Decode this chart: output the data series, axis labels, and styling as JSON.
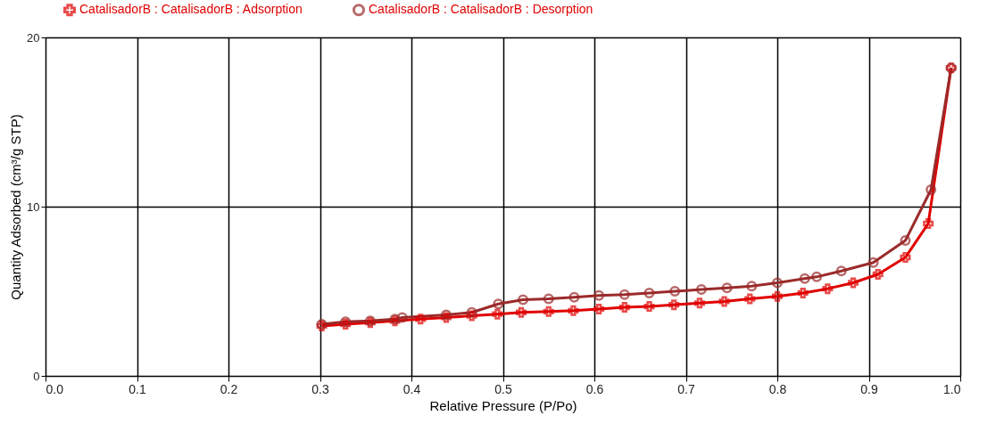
{
  "chart_data": {
    "type": "line",
    "xlabel": "Relative Pressure (P/Po)",
    "ylabel": "Quantity Adsorbed (cm³/g STP)",
    "xlim": [
      0,
      1
    ],
    "ylim": [
      0,
      20
    ],
    "xticks": [
      {
        "value": 0,
        "label": "0.0"
      },
      0.1,
      0.2,
      0.3,
      0.4,
      0.5,
      0.6,
      0.7,
      0.8,
      0.9,
      {
        "value": 1,
        "label": "1.0"
      }
    ],
    "yticks": [
      0,
      10,
      20
    ],
    "grid": true,
    "legend": "top left",
    "line_style": "solid",
    "series": [
      {
        "name": "CatalisadorB : CatalisadorB : Adsorption",
        "color": "#e00000",
        "marker": "cross",
        "x": [
          0.302,
          0.328,
          0.355,
          0.382,
          0.41,
          0.438,
          0.466,
          0.494,
          0.52,
          0.55,
          0.577,
          0.605,
          0.633,
          0.66,
          0.687,
          0.715,
          0.742,
          0.77,
          0.8,
          0.828,
          0.855,
          0.883,
          0.91,
          0.94,
          0.965,
          0.99
        ],
        "values": [
          2.95,
          3.05,
          3.15,
          3.25,
          3.35,
          3.45,
          3.55,
          3.65,
          3.75,
          3.8,
          3.85,
          3.95,
          4.05,
          4.1,
          4.2,
          4.3,
          4.4,
          4.55,
          4.7,
          4.9,
          5.15,
          5.5,
          6.0,
          7.0,
          9.0,
          18.2
        ]
      },
      {
        "name": "CatalisadorB : CatalisadorB : Desorption",
        "color": "#9b2a2a",
        "marker": "circle",
        "x": [
          0.99,
          0.968,
          0.94,
          0.905,
          0.87,
          0.843,
          0.83,
          0.8,
          0.772,
          0.745,
          0.717,
          0.688,
          0.66,
          0.633,
          0.605,
          0.578,
          0.55,
          0.522,
          0.495,
          0.466,
          0.438,
          0.39,
          0.382,
          0.355,
          0.328,
          0.302
        ],
        "values": [
          18.2,
          11.0,
          8.0,
          6.7,
          6.2,
          5.85,
          5.75,
          5.5,
          5.3,
          5.2,
          5.1,
          5.0,
          4.9,
          4.8,
          4.75,
          4.65,
          4.55,
          4.5,
          4.25,
          3.75,
          3.6,
          3.45,
          3.35,
          3.25,
          3.2,
          3.05
        ]
      }
    ]
  }
}
